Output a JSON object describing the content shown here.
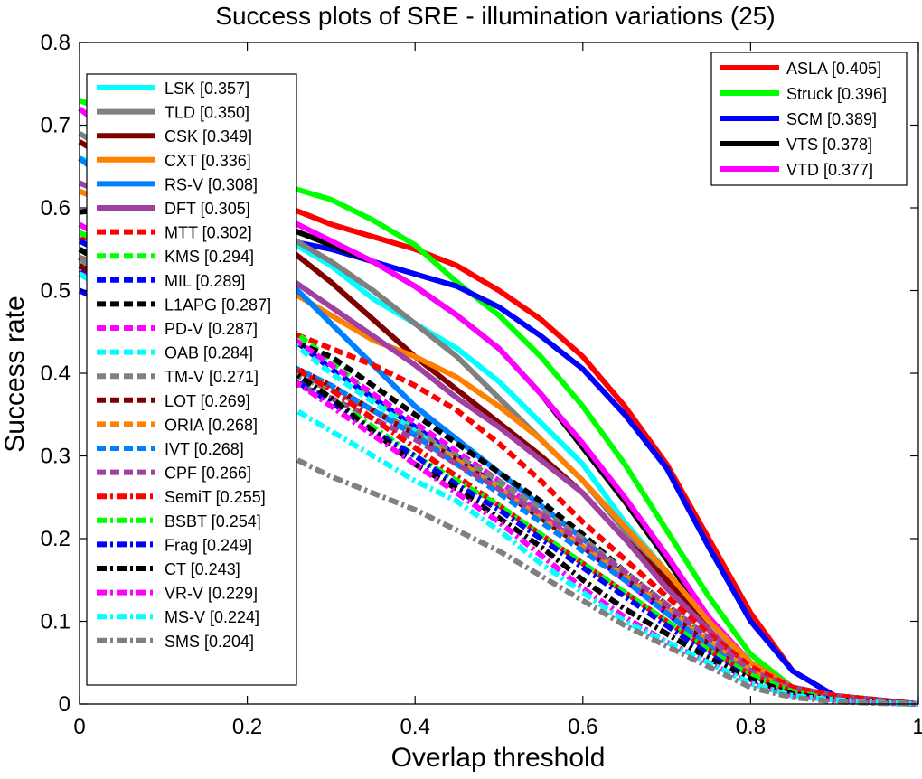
{
  "chart_data": {
    "type": "line",
    "title": "Success plots of SRE - illumination variations (25)",
    "xlabel": "Overlap threshold",
    "ylabel": "Success rate",
    "xlim": [
      0,
      1
    ],
    "ylim": [
      0,
      0.8
    ],
    "xticks": [
      "0",
      "0.2",
      "0.4",
      "0.6",
      "0.8",
      "1"
    ],
    "yticks": [
      "0",
      "0.1",
      "0.2",
      "0.3",
      "0.4",
      "0.5",
      "0.6",
      "0.7",
      "0.8"
    ],
    "grid": false,
    "legend_placement": [
      "top-right",
      "upper-left"
    ],
    "x": [
      0,
      0.05,
      0.1,
      0.15,
      0.2,
      0.25,
      0.3,
      0.35,
      0.4,
      0.45,
      0.5,
      0.55,
      0.6,
      0.65,
      0.7,
      0.75,
      0.8,
      0.85,
      0.9,
      0.95,
      1
    ],
    "series": [
      {
        "name": "ASLA [0.405]",
        "color": "#ff0000",
        "dash": "solid",
        "values": [
          0.56,
          0.59,
          0.6,
          0.605,
          0.605,
          0.6,
          0.58,
          0.565,
          0.55,
          0.53,
          0.5,
          0.465,
          0.42,
          0.36,
          0.29,
          0.2,
          0.11,
          0.04,
          0.01,
          0.005,
          0
        ]
      },
      {
        "name": "Struck [0.396]",
        "color": "#00ff00",
        "dash": "solid",
        "values": [
          0.73,
          0.71,
          0.68,
          0.655,
          0.64,
          0.625,
          0.61,
          0.585,
          0.555,
          0.51,
          0.47,
          0.42,
          0.36,
          0.29,
          0.21,
          0.13,
          0.06,
          0.02,
          0.01,
          0.005,
          0
        ]
      },
      {
        "name": "SCM [0.389]",
        "color": "#0000ff",
        "dash": "solid",
        "values": [
          0.52,
          0.54,
          0.555,
          0.565,
          0.565,
          0.56,
          0.55,
          0.535,
          0.52,
          0.505,
          0.48,
          0.445,
          0.405,
          0.35,
          0.285,
          0.19,
          0.1,
          0.04,
          0.01,
          0.005,
          0
        ]
      },
      {
        "name": "VTS [0.378]",
        "color": "#000000",
        "dash": "solid",
        "values": [
          0.595,
          0.6,
          0.595,
          0.59,
          0.585,
          0.575,
          0.555,
          0.535,
          0.505,
          0.47,
          0.43,
          0.375,
          0.31,
          0.245,
          0.175,
          0.1,
          0.05,
          0.02,
          0.01,
          0.005,
          0
        ]
      },
      {
        "name": "VTD [0.377]",
        "color": "#ff00ff",
        "dash": "solid",
        "values": [
          0.72,
          0.68,
          0.65,
          0.625,
          0.605,
          0.585,
          0.56,
          0.535,
          0.505,
          0.47,
          0.43,
          0.375,
          0.315,
          0.25,
          0.18,
          0.105,
          0.05,
          0.02,
          0.01,
          0.005,
          0
        ]
      },
      {
        "name": "LSK [0.357]",
        "color": "#00ffff",
        "dash": "solid",
        "values": [
          0.66,
          0.64,
          0.62,
          0.6,
          0.58,
          0.56,
          0.53,
          0.49,
          0.46,
          0.43,
          0.39,
          0.34,
          0.29,
          0.22,
          0.16,
          0.09,
          0.04,
          0.02,
          0.01,
          0.005,
          0
        ]
      },
      {
        "name": "TLD [0.350]",
        "color": "#808080",
        "dash": "solid",
        "values": [
          0.69,
          0.66,
          0.63,
          0.605,
          0.585,
          0.565,
          0.535,
          0.5,
          0.46,
          0.42,
          0.37,
          0.32,
          0.27,
          0.21,
          0.15,
          0.09,
          0.04,
          0.02,
          0.01,
          0.005,
          0
        ]
      },
      {
        "name": "CSK [0.349]",
        "color": "#800000",
        "dash": "solid",
        "values": [
          0.68,
          0.65,
          0.625,
          0.6,
          0.575,
          0.55,
          0.51,
          0.465,
          0.42,
          0.38,
          0.34,
          0.3,
          0.255,
          0.2,
          0.15,
          0.09,
          0.04,
          0.02,
          0.01,
          0.005,
          0
        ]
      },
      {
        "name": "CXT [0.336]",
        "color": "#ff8000",
        "dash": "solid",
        "values": [
          0.62,
          0.6,
          0.58,
          0.555,
          0.53,
          0.5,
          0.47,
          0.44,
          0.42,
          0.395,
          0.36,
          0.32,
          0.27,
          0.215,
          0.16,
          0.1,
          0.05,
          0.02,
          0.01,
          0.005,
          0
        ]
      },
      {
        "name": "RS-V [0.308]",
        "color": "#0080ff",
        "dash": "solid",
        "values": [
          0.66,
          0.62,
          0.59,
          0.56,
          0.535,
          0.51,
          0.46,
          0.41,
          0.36,
          0.32,
          0.28,
          0.24,
          0.2,
          0.155,
          0.11,
          0.07,
          0.035,
          0.015,
          0.005,
          0.002,
          0
        ]
      },
      {
        "name": "DFT [0.305]",
        "color": "#a040a0",
        "dash": "solid",
        "values": [
          0.63,
          0.61,
          0.59,
          0.565,
          0.54,
          0.515,
          0.48,
          0.445,
          0.41,
          0.37,
          0.335,
          0.295,
          0.255,
          0.2,
          0.14,
          0.09,
          0.04,
          0.02,
          0.01,
          0.005,
          0
        ]
      },
      {
        "name": "MTT [0.302]",
        "color": "#ff0000",
        "dash": "dashed",
        "values": [
          0.54,
          0.52,
          0.5,
          0.48,
          0.465,
          0.45,
          0.43,
          0.41,
          0.385,
          0.355,
          0.315,
          0.27,
          0.22,
          0.175,
          0.13,
          0.085,
          0.045,
          0.02,
          0.01,
          0.005,
          0
        ]
      },
      {
        "name": "KMS [0.294]",
        "color": "#00ff00",
        "dash": "dashed",
        "values": [
          0.57,
          0.55,
          0.525,
          0.505,
          0.48,
          0.455,
          0.415,
          0.37,
          0.335,
          0.3,
          0.265,
          0.225,
          0.19,
          0.15,
          0.11,
          0.07,
          0.035,
          0.015,
          0.005,
          0.002,
          0
        ]
      },
      {
        "name": "MIL [0.289]",
        "color": "#0000ff",
        "dash": "dashed",
        "values": [
          0.56,
          0.535,
          0.51,
          0.49,
          0.47,
          0.445,
          0.405,
          0.37,
          0.335,
          0.3,
          0.26,
          0.225,
          0.19,
          0.15,
          0.11,
          0.07,
          0.035,
          0.015,
          0.005,
          0.002,
          0
        ]
      },
      {
        "name": "L1APG [0.287]",
        "color": "#000000",
        "dash": "dashed",
        "values": [
          0.53,
          0.51,
          0.49,
          0.47,
          0.455,
          0.44,
          0.42,
          0.385,
          0.35,
          0.315,
          0.28,
          0.245,
          0.205,
          0.16,
          0.12,
          0.075,
          0.04,
          0.015,
          0.005,
          0.002,
          0
        ]
      },
      {
        "name": "PD-V [0.287]",
        "color": "#ff00ff",
        "dash": "dashed",
        "values": [
          0.58,
          0.55,
          0.52,
          0.495,
          0.47,
          0.445,
          0.41,
          0.375,
          0.34,
          0.305,
          0.27,
          0.23,
          0.19,
          0.15,
          0.11,
          0.07,
          0.035,
          0.015,
          0.005,
          0.002,
          0
        ]
      },
      {
        "name": "OAB [0.284]",
        "color": "#00ffff",
        "dash": "dashed",
        "values": [
          0.55,
          0.53,
          0.505,
          0.485,
          0.465,
          0.44,
          0.4,
          0.365,
          0.33,
          0.295,
          0.26,
          0.225,
          0.19,
          0.15,
          0.11,
          0.07,
          0.035,
          0.015,
          0.005,
          0.002,
          0
        ]
      },
      {
        "name": "TM-V [0.271]",
        "color": "#808080",
        "dash": "dashed",
        "values": [
          0.54,
          0.51,
          0.48,
          0.45,
          0.42,
          0.4,
          0.38,
          0.355,
          0.33,
          0.3,
          0.27,
          0.235,
          0.2,
          0.16,
          0.12,
          0.08,
          0.04,
          0.015,
          0.005,
          0.002,
          0
        ]
      },
      {
        "name": "LOT [0.269]",
        "color": "#800000",
        "dash": "dashed",
        "values": [
          0.53,
          0.5,
          0.475,
          0.45,
          0.43,
          0.41,
          0.385,
          0.355,
          0.325,
          0.295,
          0.26,
          0.225,
          0.19,
          0.155,
          0.115,
          0.075,
          0.04,
          0.015,
          0.005,
          0.002,
          0
        ]
      },
      {
        "name": "ORIA [0.268]",
        "color": "#ff8000",
        "dash": "dashed",
        "values": [
          0.52,
          0.495,
          0.47,
          0.45,
          0.43,
          0.41,
          0.385,
          0.355,
          0.325,
          0.295,
          0.26,
          0.225,
          0.19,
          0.155,
          0.115,
          0.075,
          0.04,
          0.015,
          0.005,
          0.002,
          0
        ]
      },
      {
        "name": "IVT [0.268]",
        "color": "#0080ff",
        "dash": "dashed",
        "values": [
          0.52,
          0.5,
          0.475,
          0.45,
          0.43,
          0.41,
          0.385,
          0.355,
          0.325,
          0.29,
          0.255,
          0.22,
          0.185,
          0.15,
          0.11,
          0.07,
          0.035,
          0.015,
          0.005,
          0.002,
          0
        ]
      },
      {
        "name": "CPF [0.266]",
        "color": "#a040a0",
        "dash": "dashed",
        "values": [
          0.5,
          0.475,
          0.45,
          0.43,
          0.41,
          0.39,
          0.37,
          0.345,
          0.32,
          0.29,
          0.26,
          0.23,
          0.195,
          0.16,
          0.12,
          0.08,
          0.04,
          0.015,
          0.005,
          0.002,
          0
        ]
      },
      {
        "name": "SemiT [0.255]",
        "color": "#ff0000",
        "dash": "dashdot",
        "values": [
          0.52,
          0.5,
          0.475,
          0.455,
          0.435,
          0.41,
          0.38,
          0.345,
          0.31,
          0.275,
          0.24,
          0.205,
          0.17,
          0.135,
          0.1,
          0.065,
          0.035,
          0.015,
          0.005,
          0.002,
          0
        ]
      },
      {
        "name": "BSBT [0.254]",
        "color": "#00ff00",
        "dash": "dashdot",
        "values": [
          0.55,
          0.52,
          0.49,
          0.46,
          0.43,
          0.4,
          0.37,
          0.335,
          0.3,
          0.27,
          0.24,
          0.205,
          0.17,
          0.135,
          0.1,
          0.065,
          0.035,
          0.015,
          0.005,
          0.002,
          0
        ]
      },
      {
        "name": "Frag [0.249]",
        "color": "#0000ff",
        "dash": "dashdot",
        "values": [
          0.5,
          0.48,
          0.455,
          0.435,
          0.415,
          0.395,
          0.365,
          0.33,
          0.3,
          0.265,
          0.235,
          0.2,
          0.165,
          0.13,
          0.095,
          0.06,
          0.03,
          0.012,
          0.005,
          0.002,
          0
        ]
      },
      {
        "name": "CT [0.243]",
        "color": "#000000",
        "dash": "dashdot",
        "values": [
          0.55,
          0.52,
          0.49,
          0.46,
          0.43,
          0.405,
          0.37,
          0.33,
          0.29,
          0.26,
          0.225,
          0.19,
          0.15,
          0.115,
          0.085,
          0.055,
          0.03,
          0.012,
          0.005,
          0.002,
          0
        ]
      },
      {
        "name": "VR-V [0.229]",
        "color": "#ff00ff",
        "dash": "dashdot",
        "values": [
          0.52,
          0.5,
          0.47,
          0.445,
          0.42,
          0.395,
          0.36,
          0.325,
          0.29,
          0.255,
          0.22,
          0.18,
          0.14,
          0.105,
          0.075,
          0.05,
          0.025,
          0.01,
          0.005,
          0.002,
          0
        ]
      },
      {
        "name": "MS-V [0.224]",
        "color": "#00ffff",
        "dash": "dashdot",
        "values": [
          0.52,
          0.49,
          0.455,
          0.42,
          0.39,
          0.36,
          0.33,
          0.3,
          0.27,
          0.245,
          0.21,
          0.17,
          0.135,
          0.1,
          0.075,
          0.05,
          0.025,
          0.01,
          0.005,
          0.002,
          0
        ]
      },
      {
        "name": "SMS [0.204]",
        "color": "#808080",
        "dash": "dashdot",
        "values": [
          0.54,
          0.49,
          0.44,
          0.39,
          0.34,
          0.3,
          0.275,
          0.255,
          0.235,
          0.21,
          0.185,
          0.155,
          0.125,
          0.095,
          0.07,
          0.045,
          0.02,
          0.008,
          0.003,
          0.001,
          0
        ]
      }
    ]
  }
}
